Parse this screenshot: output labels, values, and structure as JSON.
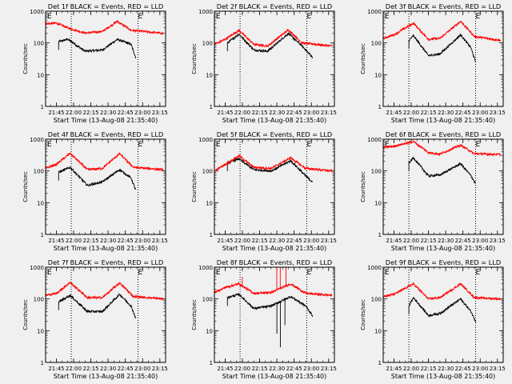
{
  "common": {
    "xlabel": "Start Time (13-Aug-08 21:35:40)",
    "ylabel": "Counts/sec",
    "x_ticks": [
      "21:45",
      "22:00",
      "22:15",
      "22:30",
      "22:45",
      "23:00",
      "23:15"
    ],
    "y_ticks": [
      "1",
      "10",
      "100",
      "1000"
    ],
    "marker": "E",
    "colors": {
      "events": "#000000",
      "lld": "#ff0000",
      "background": "#f0f0f0"
    }
  },
  "chart_data": [
    {
      "type": "line",
      "title": "Det 1f BLACK = Events, RED = LLD",
      "ylim": [
        1,
        1000
      ],
      "scale_y": "log",
      "x_range": [
        "21:35:40",
        "23:20"
      ],
      "dotted_lines": [
        "21:58",
        "22:56"
      ],
      "markers": [
        "21:37",
        "22:56"
      ],
      "events_window": [
        "21:47",
        "22:54"
      ],
      "lld_window": [
        "21:35:40",
        "23:18"
      ],
      "series": [
        {
          "key": "events",
          "values": [
            {
              "t": "21:47",
              "v": 110
            },
            {
              "t": "21:55",
              "v": 130
            },
            {
              "t": "22:10",
              "v": 55
            },
            {
              "t": "22:25",
              "v": 60
            },
            {
              "t": "22:38",
              "v": 130
            },
            {
              "t": "22:50",
              "v": 90
            },
            {
              "t": "22:54",
              "v": 35
            }
          ]
        },
        {
          "key": "lld",
          "values": [
            {
              "t": "21:35:40",
              "v": 400
            },
            {
              "t": "21:45",
              "v": 420
            },
            {
              "t": "21:55",
              "v": 300
            },
            {
              "t": "22:10",
              "v": 205
            },
            {
              "t": "22:25",
              "v": 230
            },
            {
              "t": "22:38",
              "v": 480
            },
            {
              "t": "22:50",
              "v": 250
            },
            {
              "t": "23:18",
              "v": 200
            }
          ]
        }
      ]
    },
    {
      "type": "line",
      "title": "Det 2f BLACK = Events, RED = LLD",
      "ylim": [
        1,
        1000
      ],
      "scale_y": "log",
      "x_range": [
        "21:35:40",
        "23:20"
      ],
      "dotted_lines": [
        "21:58",
        "22:56"
      ],
      "markers": [
        "21:37",
        "22:56"
      ],
      "events_window": [
        "21:47",
        "23:01"
      ],
      "lld_window": [
        "21:35:40",
        "23:18"
      ],
      "series": [
        {
          "key": "events",
          "values": [
            {
              "t": "21:47",
              "v": 100
            },
            {
              "t": "21:57",
              "v": 190
            },
            {
              "t": "22:10",
              "v": 60
            },
            {
              "t": "22:22",
              "v": 55
            },
            {
              "t": "22:40",
              "v": 200
            },
            {
              "t": "22:52",
              "v": 80
            },
            {
              "t": "23:01",
              "v": 35
            }
          ]
        },
        {
          "key": "lld",
          "values": [
            {
              "t": "21:35:40",
              "v": 90
            },
            {
              "t": "21:45",
              "v": 130
            },
            {
              "t": "21:57",
              "v": 250
            },
            {
              "t": "22:10",
              "v": 90
            },
            {
              "t": "22:22",
              "v": 80
            },
            {
              "t": "22:40",
              "v": 260
            },
            {
              "t": "22:52",
              "v": 100
            },
            {
              "t": "23:18",
              "v": 80
            }
          ]
        }
      ]
    },
    {
      "type": "line",
      "title": "Det 3f BLACK = Events, RED = LLD",
      "ylim": [
        1,
        1000
      ],
      "scale_y": "log",
      "x_range": [
        "21:35:40",
        "23:20"
      ],
      "dotted_lines": [
        "21:58",
        "22:56"
      ],
      "markers": [
        "21:37",
        "22:56"
      ],
      "events_window": [
        "21:58",
        "22:56"
      ],
      "lld_window": [
        "21:35:40",
        "23:18"
      ],
      "series": [
        {
          "key": "events",
          "values": [
            {
              "t": "21:58",
              "v": 120
            },
            {
              "t": "22:02",
              "v": 170
            },
            {
              "t": "22:15",
              "v": 40
            },
            {
              "t": "22:25",
              "v": 45
            },
            {
              "t": "22:43",
              "v": 180
            },
            {
              "t": "22:52",
              "v": 70
            },
            {
              "t": "22:56",
              "v": 25
            }
          ]
        },
        {
          "key": "lld",
          "values": [
            {
              "t": "21:35:40",
              "v": 140
            },
            {
              "t": "21:45",
              "v": 180
            },
            {
              "t": "22:02",
              "v": 420
            },
            {
              "t": "22:15",
              "v": 130
            },
            {
              "t": "22:25",
              "v": 140
            },
            {
              "t": "22:43",
              "v": 480
            },
            {
              "t": "22:55",
              "v": 160
            },
            {
              "t": "23:18",
              "v": 120
            }
          ]
        }
      ]
    },
    {
      "type": "line",
      "title": "Det 4f BLACK = Events, RED = LLD",
      "ylim": [
        1,
        1000
      ],
      "scale_y": "log",
      "x_range": [
        "21:35:40",
        "23:20"
      ],
      "dotted_lines": [
        "21:58",
        "22:56"
      ],
      "markers": [
        "21:37",
        "22:56"
      ],
      "events_window": [
        "21:47",
        "22:54"
      ],
      "lld_window": [
        "21:35:40",
        "23:18"
      ],
      "series": [
        {
          "key": "events",
          "values": [
            {
              "t": "21:47",
              "v": 90
            },
            {
              "t": "21:57",
              "v": 130
            },
            {
              "t": "22:12",
              "v": 35
            },
            {
              "t": "22:25",
              "v": 45
            },
            {
              "t": "22:40",
              "v": 110
            },
            {
              "t": "22:50",
              "v": 60
            },
            {
              "t": "22:54",
              "v": 25
            }
          ]
        },
        {
          "key": "lld",
          "values": [
            {
              "t": "21:35:40",
              "v": 120
            },
            {
              "t": "21:45",
              "v": 160
            },
            {
              "t": "21:57",
              "v": 360
            },
            {
              "t": "22:12",
              "v": 110
            },
            {
              "t": "22:25",
              "v": 120
            },
            {
              "t": "22:40",
              "v": 350
            },
            {
              "t": "22:52",
              "v": 130
            },
            {
              "t": "23:18",
              "v": 110
            }
          ]
        }
      ]
    },
    {
      "type": "line",
      "title": "Det 5f BLACK = Events, RED = LLD",
      "ylim": [
        1,
        1000
      ],
      "scale_y": "log",
      "x_range": [
        "21:35:40",
        "23:20"
      ],
      "dotted_lines": [
        "21:58",
        "22:56"
      ],
      "markers": [
        "21:37",
        "22:56"
      ],
      "events_window": [
        "21:47",
        "23:01"
      ],
      "lld_window": [
        "21:35:40",
        "23:18"
      ],
      "series": [
        {
          "key": "events",
          "values": [
            {
              "t": "21:47",
              "v": 180
            },
            {
              "t": "21:57",
              "v": 240
            },
            {
              "t": "22:10",
              "v": 110
            },
            {
              "t": "22:25",
              "v": 100
            },
            {
              "t": "22:42",
              "v": 210
            },
            {
              "t": "22:55",
              "v": 70
            },
            {
              "t": "23:01",
              "v": 45
            }
          ]
        },
        {
          "key": "lld",
          "values": [
            {
              "t": "21:35:40",
              "v": 100
            },
            {
              "t": "21:45",
              "v": 160
            },
            {
              "t": "21:57",
              "v": 300
            },
            {
              "t": "22:10",
              "v": 130
            },
            {
              "t": "22:25",
              "v": 120
            },
            {
              "t": "22:42",
              "v": 260
            },
            {
              "t": "22:55",
              "v": 120
            },
            {
              "t": "23:18",
              "v": 100
            }
          ]
        }
      ]
    },
    {
      "type": "line",
      "title": "Det 6f BLACK = Events, RED = LLD",
      "ylim": [
        1,
        1000
      ],
      "scale_y": "log",
      "x_range": [
        "21:35:40",
        "23:20"
      ],
      "dotted_lines": [
        "21:58",
        "22:56"
      ],
      "markers": [
        "21:37",
        "22:56"
      ],
      "events_window": [
        "21:58",
        "22:56"
      ],
      "lld_window": [
        "21:35:40",
        "23:18"
      ],
      "series": [
        {
          "key": "events",
          "values": [
            {
              "t": "21:58",
              "v": 180
            },
            {
              "t": "22:02",
              "v": 260
            },
            {
              "t": "22:15",
              "v": 70
            },
            {
              "t": "22:25",
              "v": 75
            },
            {
              "t": "22:43",
              "v": 170
            },
            {
              "t": "22:52",
              "v": 70
            },
            {
              "t": "22:56",
              "v": 40
            }
          ]
        },
        {
          "key": "lld",
          "values": [
            {
              "t": "21:35:40",
              "v": 550
            },
            {
              "t": "21:45",
              "v": 600
            },
            {
              "t": "22:02",
              "v": 850
            },
            {
              "t": "22:15",
              "v": 380
            },
            {
              "t": "22:25",
              "v": 340
            },
            {
              "t": "22:43",
              "v": 650
            },
            {
              "t": "22:55",
              "v": 350
            },
            {
              "t": "23:18",
              "v": 330
            }
          ]
        }
      ]
    },
    {
      "type": "line",
      "title": "Det 7f BLACK = Events, RED = LLD",
      "ylim": [
        1,
        1000
      ],
      "scale_y": "log",
      "x_range": [
        "21:35:40",
        "23:20"
      ],
      "dotted_lines": [
        "21:58",
        "22:56"
      ],
      "markers": [
        "21:37",
        "22:56"
      ],
      "events_window": [
        "21:47",
        "22:54"
      ],
      "lld_window": [
        "21:35:40",
        "23:18"
      ],
      "series": [
        {
          "key": "events",
          "values": [
            {
              "t": "21:47",
              "v": 80
            },
            {
              "t": "21:57",
              "v": 130
            },
            {
              "t": "22:12",
              "v": 40
            },
            {
              "t": "22:25",
              "v": 40
            },
            {
              "t": "22:40",
              "v": 140
            },
            {
              "t": "22:50",
              "v": 60
            },
            {
              "t": "22:54",
              "v": 25
            }
          ]
        },
        {
          "key": "lld",
          "values": [
            {
              "t": "21:35:40",
              "v": 130
            },
            {
              "t": "21:45",
              "v": 150
            },
            {
              "t": "21:57",
              "v": 330
            },
            {
              "t": "22:12",
              "v": 110
            },
            {
              "t": "22:25",
              "v": 110
            },
            {
              "t": "22:40",
              "v": 320
            },
            {
              "t": "22:52",
              "v": 120
            },
            {
              "t": "23:18",
              "v": 100
            }
          ]
        }
      ]
    },
    {
      "type": "line",
      "title": "Det 8f BLACK = Events, RED = LLD",
      "ylim": [
        1,
        1000
      ],
      "scale_y": "log",
      "x_range": [
        "21:35:40",
        "23:20"
      ],
      "dotted_lines": [
        "21:58",
        "22:56"
      ],
      "markers": [
        "21:37",
        "22:56"
      ],
      "events_window": [
        "21:47",
        "23:01"
      ],
      "lld_window": [
        "21:35:40",
        "23:18"
      ],
      "spikes": [
        {
          "series": "events",
          "t": "22:30",
          "v": 8
        },
        {
          "series": "events",
          "t": "22:33",
          "v": 3
        },
        {
          "series": "events",
          "t": "22:37",
          "v": 15
        },
        {
          "series": "lld",
          "t": "22:30",
          "v": 1000
        },
        {
          "series": "lld",
          "t": "22:33",
          "v": 1000
        },
        {
          "series": "lld",
          "t": "22:38",
          "v": 1000
        },
        {
          "series": "lld",
          "t": "22:00",
          "v": 500
        }
      ],
      "series": [
        {
          "key": "events",
          "values": [
            {
              "t": "21:47",
              "v": 110
            },
            {
              "t": "21:57",
              "v": 140
            },
            {
              "t": "22:10",
              "v": 50
            },
            {
              "t": "22:25",
              "v": 60
            },
            {
              "t": "22:42",
              "v": 120
            },
            {
              "t": "22:55",
              "v": 60
            },
            {
              "t": "23:01",
              "v": 30
            }
          ]
        },
        {
          "key": "lld",
          "values": [
            {
              "t": "21:35:40",
              "v": 160
            },
            {
              "t": "21:45",
              "v": 230
            },
            {
              "t": "21:57",
              "v": 300
            },
            {
              "t": "22:10",
              "v": 150
            },
            {
              "t": "22:25",
              "v": 160
            },
            {
              "t": "22:42",
              "v": 300
            },
            {
              "t": "22:55",
              "v": 150
            },
            {
              "t": "23:18",
              "v": 130
            }
          ]
        }
      ]
    },
    {
      "type": "line",
      "title": "Det 9f BLACK = Events, RED = LLD",
      "ylim": [
        1,
        1000
      ],
      "scale_y": "log",
      "x_range": [
        "21:35:40",
        "23:20"
      ],
      "dotted_lines": [
        "21:58",
        "22:56"
      ],
      "markers": [
        "21:37",
        "22:56"
      ],
      "events_window": [
        "21:58",
        "22:56"
      ],
      "lld_window": [
        "21:35:40",
        "23:18"
      ],
      "series": [
        {
          "key": "events",
          "values": [
            {
              "t": "21:58",
              "v": 60
            },
            {
              "t": "22:02",
              "v": 110
            },
            {
              "t": "22:15",
              "v": 30
            },
            {
              "t": "22:25",
              "v": 35
            },
            {
              "t": "22:43",
              "v": 100
            },
            {
              "t": "22:52",
              "v": 40
            },
            {
              "t": "22:56",
              "v": 20
            }
          ]
        },
        {
          "key": "lld",
          "values": [
            {
              "t": "21:35:40",
              "v": 120
            },
            {
              "t": "21:45",
              "v": 140
            },
            {
              "t": "22:02",
              "v": 300
            },
            {
              "t": "22:15",
              "v": 100
            },
            {
              "t": "22:25",
              "v": 110
            },
            {
              "t": "22:43",
              "v": 300
            },
            {
              "t": "22:55",
              "v": 110
            },
            {
              "t": "23:18",
              "v": 100
            }
          ]
        }
      ]
    }
  ]
}
